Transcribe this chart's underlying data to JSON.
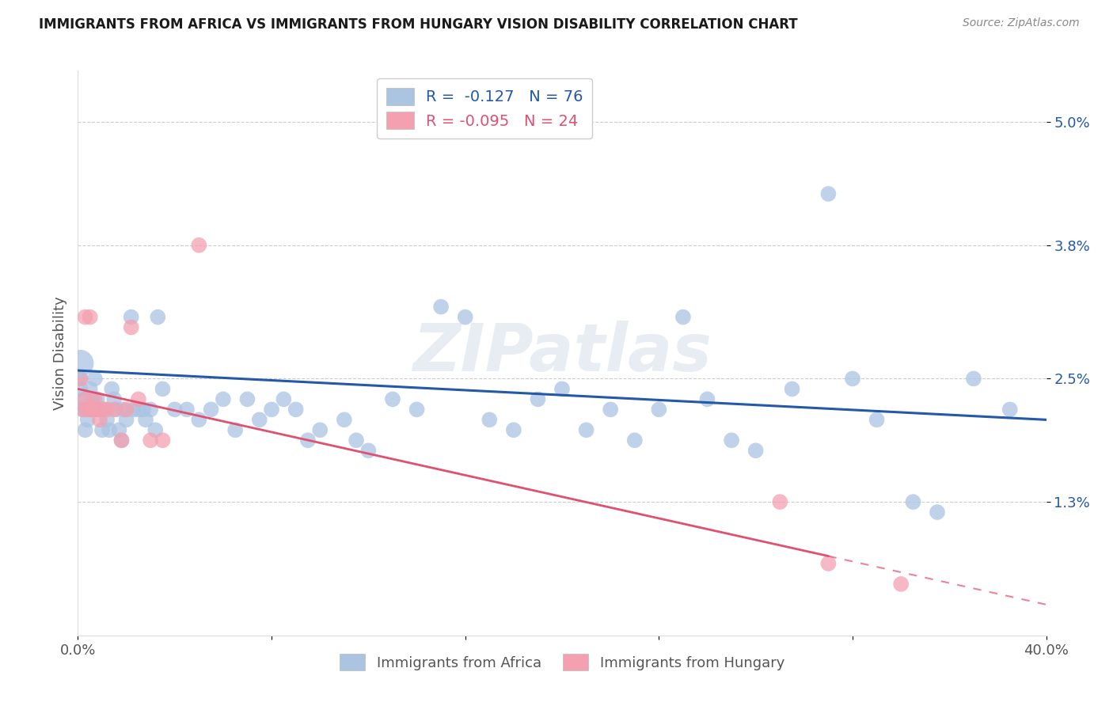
{
  "title": "IMMIGRANTS FROM AFRICA VS IMMIGRANTS FROM HUNGARY VISION DISABILITY CORRELATION CHART",
  "source": "Source: ZipAtlas.com",
  "ylabel": "Vision Disability",
  "xlim": [
    0.0,
    0.4
  ],
  "ylim": [
    0.0,
    0.055
  ],
  "ytick_positions": [
    0.013,
    0.025,
    0.038,
    0.05
  ],
  "ytick_labels": [
    "1.3%",
    "2.5%",
    "3.8%",
    "5.0%"
  ],
  "africa_R": "-0.127",
  "africa_N": "76",
  "hungary_R": "-0.095",
  "hungary_N": "24",
  "africa_color": "#aac4e2",
  "africa_line_color": "#2458a8",
  "hungary_color": "#f4a0b0",
  "hungary_line_color": "#e05070",
  "africa_scatter_x": [
    0.001,
    0.001,
    0.002,
    0.002,
    0.003,
    0.003,
    0.004,
    0.004,
    0.005,
    0.005,
    0.006,
    0.007,
    0.007,
    0.008,
    0.009,
    0.01,
    0.01,
    0.011,
    0.012,
    0.013,
    0.014,
    0.015,
    0.016,
    0.017,
    0.018,
    0.019,
    0.02,
    0.022,
    0.023,
    0.025,
    0.027,
    0.028,
    0.03,
    0.032,
    0.033,
    0.035,
    0.04,
    0.045,
    0.05,
    0.055,
    0.06,
    0.065,
    0.07,
    0.075,
    0.08,
    0.085,
    0.09,
    0.095,
    0.1,
    0.11,
    0.115,
    0.12,
    0.13,
    0.14,
    0.15,
    0.16,
    0.17,
    0.18,
    0.19,
    0.2,
    0.21,
    0.22,
    0.23,
    0.24,
    0.25,
    0.26,
    0.27,
    0.28,
    0.295,
    0.31,
    0.32,
    0.33,
    0.345,
    0.355,
    0.37,
    0.385
  ],
  "africa_scatter_y": [
    0.025,
    0.024,
    0.023,
    0.022,
    0.022,
    0.02,
    0.022,
    0.021,
    0.024,
    0.022,
    0.023,
    0.025,
    0.022,
    0.023,
    0.022,
    0.022,
    0.02,
    0.022,
    0.021,
    0.02,
    0.024,
    0.023,
    0.022,
    0.02,
    0.019,
    0.022,
    0.021,
    0.031,
    0.022,
    0.022,
    0.022,
    0.021,
    0.022,
    0.02,
    0.031,
    0.024,
    0.022,
    0.022,
    0.021,
    0.022,
    0.023,
    0.02,
    0.023,
    0.021,
    0.022,
    0.023,
    0.022,
    0.019,
    0.02,
    0.021,
    0.019,
    0.018,
    0.023,
    0.022,
    0.032,
    0.031,
    0.021,
    0.02,
    0.023,
    0.024,
    0.02,
    0.022,
    0.019,
    0.022,
    0.031,
    0.023,
    0.019,
    0.018,
    0.024,
    0.043,
    0.025,
    0.021,
    0.013,
    0.012,
    0.025,
    0.022
  ],
  "hungary_scatter_x": [
    0.001,
    0.002,
    0.003,
    0.003,
    0.004,
    0.005,
    0.005,
    0.006,
    0.007,
    0.008,
    0.009,
    0.01,
    0.012,
    0.015,
    0.018,
    0.02,
    0.022,
    0.025,
    0.03,
    0.035,
    0.05,
    0.29,
    0.31,
    0.34
  ],
  "hungary_scatter_y": [
    0.025,
    0.022,
    0.023,
    0.031,
    0.022,
    0.022,
    0.031,
    0.022,
    0.023,
    0.022,
    0.021,
    0.022,
    0.022,
    0.022,
    0.019,
    0.022,
    0.03,
    0.023,
    0.019,
    0.019,
    0.038,
    0.013,
    0.007,
    0.005
  ],
  "africa_trend_x0": 0.0,
  "africa_trend_y0": 0.0258,
  "africa_trend_x1": 0.4,
  "africa_trend_y1": 0.021,
  "hungary_trend_x0": 0.0,
  "hungary_trend_y0": 0.024,
  "hungary_trend_x1": 0.4,
  "hungary_trend_y1": 0.003,
  "background_color": "#ffffff",
  "grid_color": "#cccccc",
  "watermark_text": "ZIPatlas",
  "watermark_color": "#d0dce8"
}
